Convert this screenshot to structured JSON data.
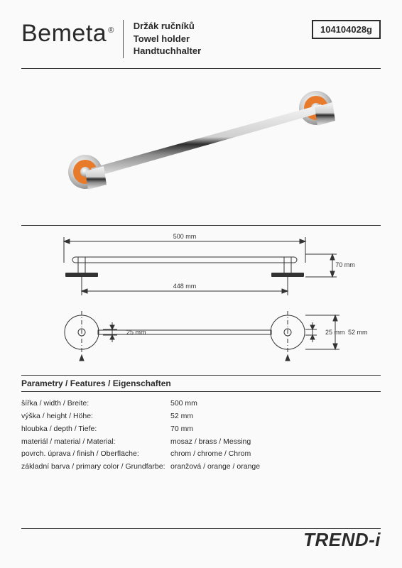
{
  "logo": {
    "prefix": "Be",
    "suffix": "meta",
    "reg": "®"
  },
  "titles": {
    "cz": "Držák ručníků",
    "en": "Towel holder",
    "de": "Handtuchhalter"
  },
  "sku": "104104028g",
  "photo": {
    "accent_color": "#e87a2c",
    "chrome_light": "#f2f2f2",
    "chrome_mid": "#bdbdbd",
    "chrome_dark": "#2b2b2b",
    "background": "#ffffff"
  },
  "drawing": {
    "line_color": "#333333",
    "dims": {
      "total_width": "500 mm",
      "inner_width": "448 mm",
      "height": "70 mm",
      "bracket_h": "25 mm",
      "bracket_h2": "25 mm",
      "rosette_d": "52 mm",
      "rosette_d2": "52 mm"
    }
  },
  "features": {
    "heading": "Parametry / Features / Eigenschaften",
    "rows": [
      {
        "label": "šířka / width / Breite:",
        "value": "500 mm"
      },
      {
        "label": "výška / height / Höhe:",
        "value": "52 mm"
      },
      {
        "label": "hloubka / depth / Tiefe:",
        "value": "70 mm"
      },
      {
        "label": "materiál / material / Material:",
        "value": "mosaz / brass / Messing"
      },
      {
        "label": "povrch. úprava / finish / Oberfläche:",
        "value": "chrom / chrome / Chrom"
      },
      {
        "label": "základní barva / primary color / Grundfarbe:",
        "value": "oranžová / orange / orange"
      }
    ]
  },
  "series": "TREND-i"
}
